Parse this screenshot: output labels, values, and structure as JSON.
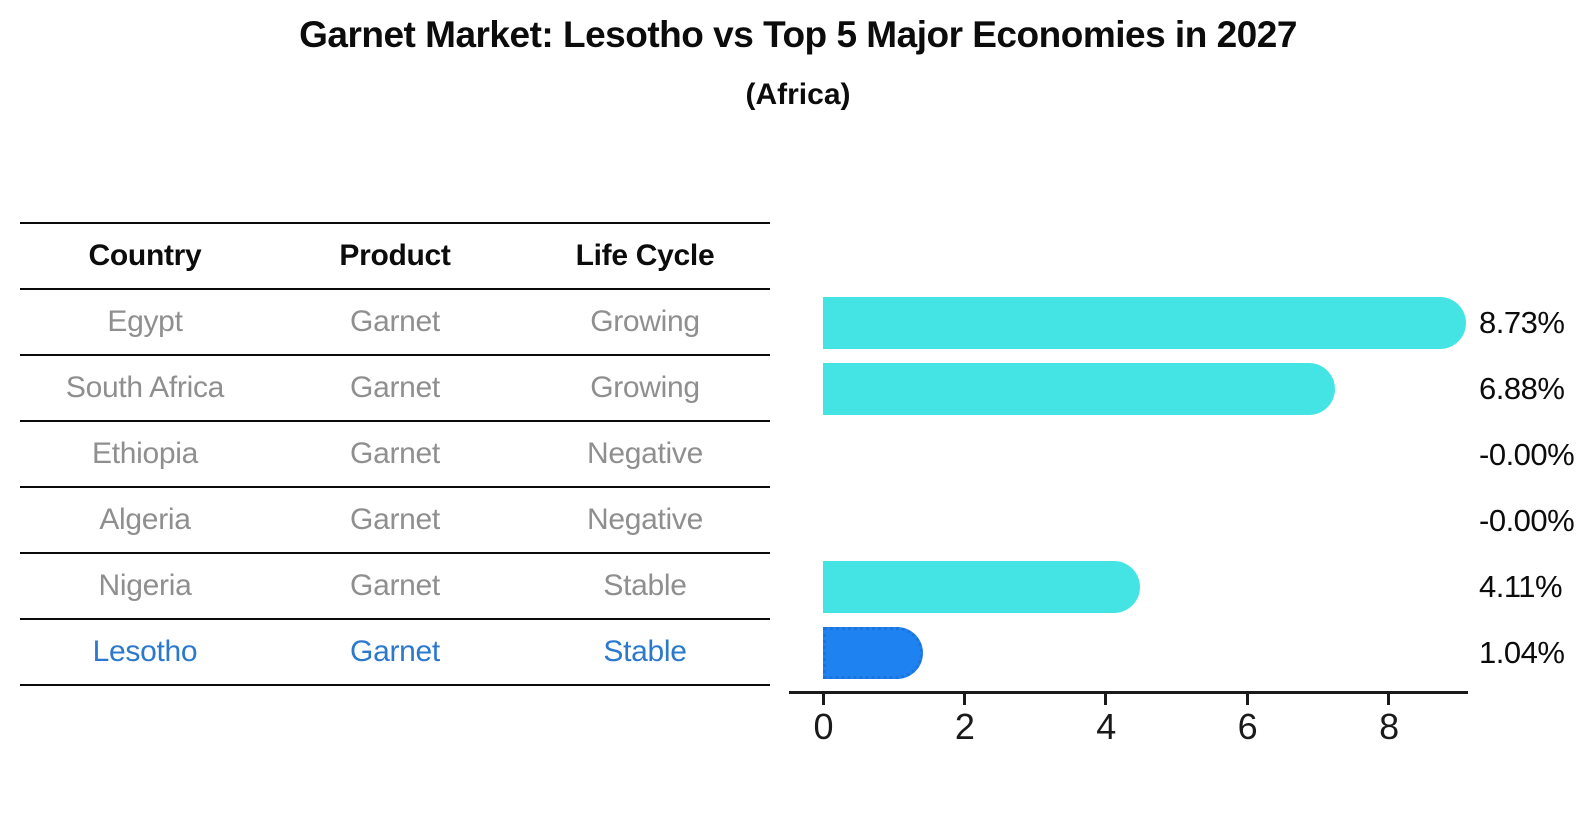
{
  "title": "Garnet Market: Lesotho vs Top 5 Major Economies in 2027",
  "subtitle": "(Africa)",
  "table": {
    "headers": [
      "Country",
      "Product",
      "Life Cycle"
    ],
    "rows": [
      {
        "country": "Egypt",
        "product": "Garnet",
        "life_cycle": "Growing",
        "highlight": false
      },
      {
        "country": "South Africa",
        "product": "Garnet",
        "life_cycle": "Growing",
        "highlight": false
      },
      {
        "country": "Ethiopia",
        "product": "Garnet",
        "life_cycle": "Negative",
        "highlight": false
      },
      {
        "country": "Algeria",
        "product": "Garnet",
        "life_cycle": "Negative",
        "highlight": false
      },
      {
        "country": "Nigeria",
        "product": "Garnet",
        "life_cycle": "Stable",
        "highlight": false
      },
      {
        "country": "Lesotho",
        "product": "Garnet",
        "life_cycle": "Stable",
        "highlight": true
      }
    ]
  },
  "chart_data": {
    "type": "bar",
    "orientation": "horizontal",
    "categories": [
      "Egypt",
      "South Africa",
      "Ethiopia",
      "Algeria",
      "Nigeria",
      "Lesotho"
    ],
    "values": [
      8.73,
      6.88,
      -0.0,
      -0.0,
      4.11,
      1.04
    ],
    "value_labels": [
      "8.73%",
      "6.88%",
      "-0.00%",
      "-0.00%",
      "4.11%",
      "1.04%"
    ],
    "xticks": [
      0,
      2,
      4,
      6,
      8
    ],
    "xlim": [
      0,
      9.1
    ],
    "grid": false,
    "legend": null,
    "highlight_index": 5,
    "colors": {
      "bar_default": "#45E4E4",
      "bar_highlight": "#1E82F0",
      "highlight_border": "#1b74dd",
      "table_text": "#8f8f8f",
      "table_highlight_text": "#2b79cc",
      "axis": "#1a1a1a",
      "label_text": "#0c0c0c"
    }
  }
}
